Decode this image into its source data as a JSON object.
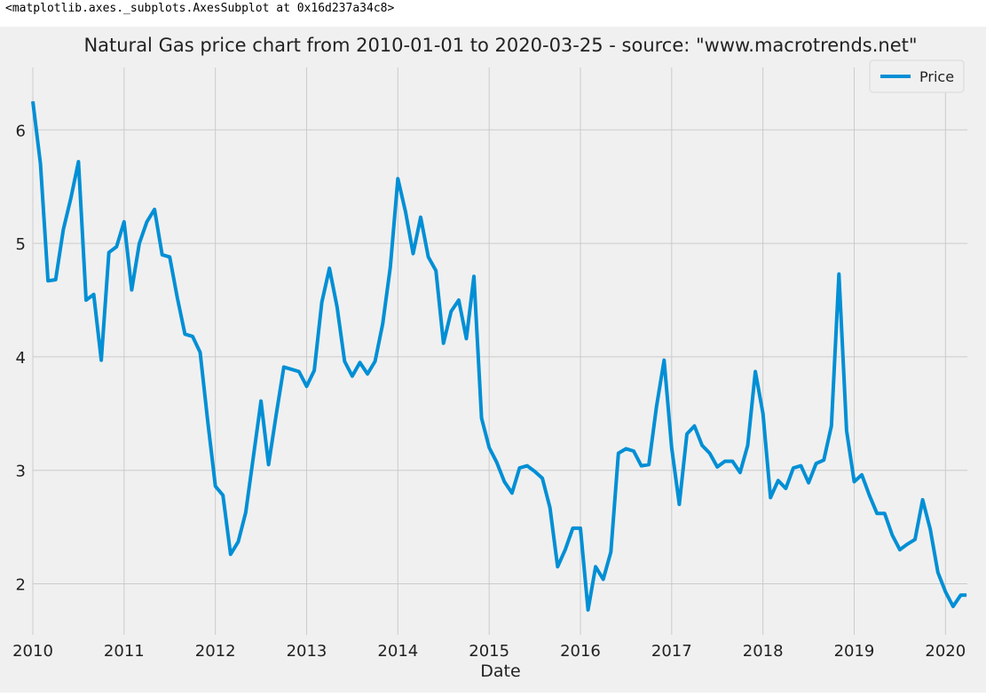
{
  "output_repr": "<matplotlib.axes._subplots.AxesSubplot at 0x16d237a34c8>",
  "chart_data": {
    "type": "line",
    "title": "Natural Gas price chart from 2010-01-01 to 2020-03-25 - source: \"www.macrotrends.net\"",
    "xlabel": "Date",
    "ylabel": "",
    "xlim": [
      2010.0,
      2020.24
    ],
    "ylim": [
      1.55,
      6.55
    ],
    "yticks": [
      2,
      3,
      4,
      5,
      6
    ],
    "xticks": [
      2010,
      2011,
      2012,
      2013,
      2014,
      2015,
      2016,
      2017,
      2018,
      2019,
      2020
    ],
    "grid": true,
    "legend_position": "top-right",
    "colors": {
      "line": "#008fd5",
      "background": "#f0f0f0",
      "grid": "#cbcbcb"
    },
    "series": [
      {
        "name": "Price",
        "x": [
          2010.0,
          2010.0833,
          2010.1667,
          2010.25,
          2010.3333,
          2010.4167,
          2010.5,
          2010.5833,
          2010.6667,
          2010.75,
          2010.8333,
          2010.9167,
          2011.0,
          2011.0833,
          2011.1667,
          2011.25,
          2011.3333,
          2011.4167,
          2011.5,
          2011.5833,
          2011.6667,
          2011.75,
          2011.8333,
          2011.9167,
          2012.0,
          2012.0833,
          2012.1667,
          2012.25,
          2012.3333,
          2012.4167,
          2012.5,
          2012.5833,
          2012.6667,
          2012.75,
          2012.8333,
          2012.9167,
          2013.0,
          2013.0833,
          2013.1667,
          2013.25,
          2013.3333,
          2013.4167,
          2013.5,
          2013.5833,
          2013.6667,
          2013.75,
          2013.8333,
          2013.9167,
          2014.0,
          2014.0833,
          2014.1667,
          2014.25,
          2014.3333,
          2014.4167,
          2014.5,
          2014.5833,
          2014.6667,
          2014.75,
          2014.8333,
          2014.9167,
          2015.0,
          2015.0833,
          2015.1667,
          2015.25,
          2015.3333,
          2015.4167,
          2015.5,
          2015.5833,
          2015.6667,
          2015.75,
          2015.8333,
          2015.9167,
          2016.0,
          2016.0833,
          2016.1667,
          2016.25,
          2016.3333,
          2016.4167,
          2016.5,
          2016.5833,
          2016.6667,
          2016.75,
          2016.8333,
          2016.9167,
          2017.0,
          2017.0833,
          2017.1667,
          2017.25,
          2017.3333,
          2017.4167,
          2017.5,
          2017.5833,
          2017.6667,
          2017.75,
          2017.8333,
          2017.9167,
          2018.0,
          2018.0833,
          2018.1667,
          2018.25,
          2018.3333,
          2018.4167,
          2018.5,
          2018.5833,
          2018.6667,
          2018.75,
          2018.8333,
          2018.9167,
          2019.0,
          2019.0833,
          2019.1667,
          2019.25,
          2019.3333,
          2019.4167,
          2019.5,
          2019.5833,
          2019.6667,
          2019.75,
          2019.8333,
          2019.9167,
          2020.0,
          2020.0833,
          2020.1667,
          2020.23
        ],
        "values": [
          6.25,
          5.7,
          4.67,
          4.68,
          5.12,
          5.4,
          5.72,
          4.5,
          4.55,
          3.97,
          4.92,
          4.97,
          5.19,
          4.59,
          5.0,
          5.19,
          5.3,
          4.9,
          4.88,
          4.52,
          4.2,
          4.18,
          4.04,
          3.43,
          2.86,
          2.78,
          2.26,
          2.37,
          2.63,
          3.12,
          3.61,
          3.05,
          3.49,
          3.91,
          3.89,
          3.87,
          3.74,
          3.88,
          4.48,
          4.78,
          4.44,
          3.96,
          3.83,
          3.95,
          3.85,
          3.96,
          4.29,
          4.79,
          5.57,
          5.28,
          4.91,
          5.23,
          4.88,
          4.76,
          4.12,
          4.4,
          4.5,
          4.16,
          4.71,
          3.46,
          3.2,
          3.07,
          2.9,
          2.8,
          3.02,
          3.04,
          2.99,
          2.93,
          2.67,
          2.15,
          2.3,
          2.49,
          2.49,
          1.77,
          2.15,
          2.04,
          2.28,
          3.15,
          3.19,
          3.17,
          3.04,
          3.05,
          3.56,
          3.97,
          3.2,
          2.7,
          3.32,
          3.39,
          3.22,
          3.15,
          3.03,
          3.08,
          3.08,
          2.98,
          3.22,
          3.87,
          3.5,
          2.76,
          2.91,
          2.84,
          3.02,
          3.04,
          2.89,
          3.06,
          3.09,
          3.39,
          4.73,
          3.35,
          2.9,
          2.96,
          2.78,
          2.62,
          2.62,
          2.43,
          2.3,
          2.35,
          2.39,
          2.74,
          2.48,
          2.1,
          1.93,
          1.8,
          1.9,
          1.9
        ]
      }
    ]
  }
}
